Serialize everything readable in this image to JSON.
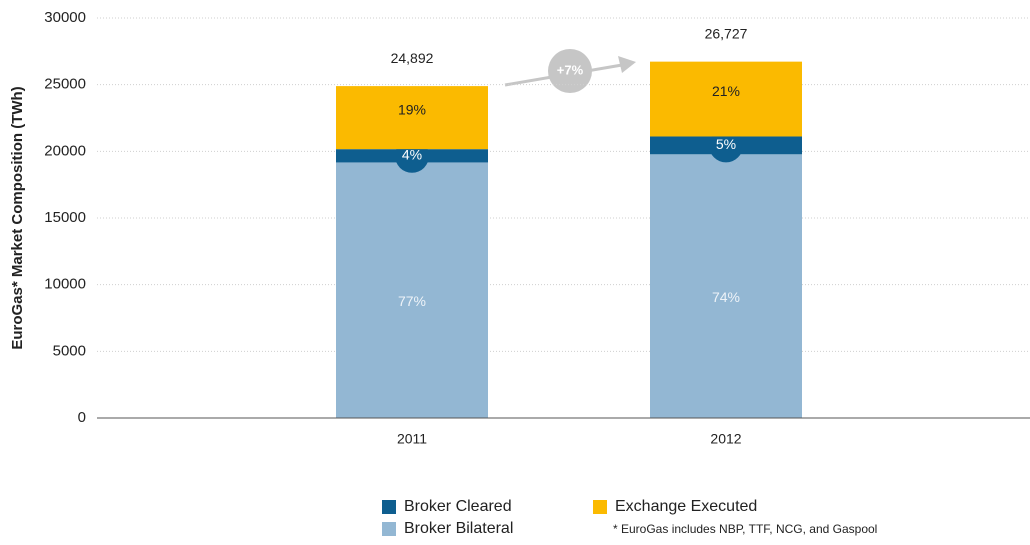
{
  "chart_data": {
    "type": "stacked_bar",
    "y_label": "EuroGas* Market Composition (TWh)",
    "categories": [
      "2011",
      "2012"
    ],
    "series": [
      {
        "name": "Broker Bilateral",
        "color": "#93b7d3",
        "values": [
          19167,
          19778
        ],
        "labels": [
          "77%",
          "74%"
        ]
      },
      {
        "name": "Broker Cleared",
        "color": "#0e5e8f",
        "values": [
          996,
          1336
        ],
        "labels": [
          "4%",
          "5%"
        ]
      },
      {
        "name": "Exchange Executed",
        "color": "#fbba00",
        "values": [
          4729,
          5613
        ],
        "labels": [
          "19%",
          "21%"
        ]
      }
    ],
    "total_labels": [
      "24,892",
      "26,727"
    ],
    "growth_label": "+7%",
    "footnote": "* EuroGas includes NBP, TTF, NCG, and Gaspool",
    "ylim": [
      0,
      30000
    ],
    "yticks": [
      0,
      5000,
      10000,
      15000,
      20000,
      25000,
      30000
    ],
    "grid": true
  }
}
